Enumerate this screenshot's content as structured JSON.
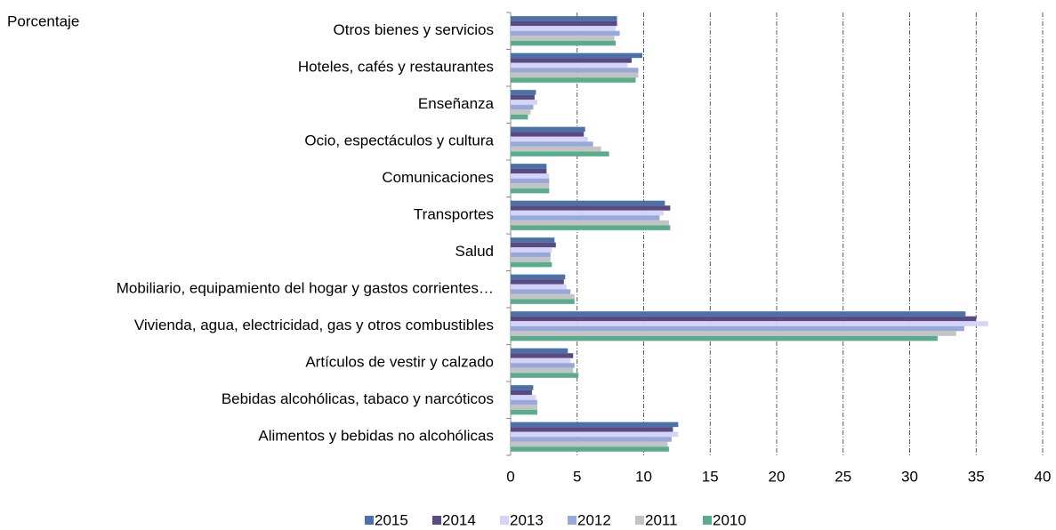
{
  "chart_data": {
    "type": "bar",
    "orientation": "horizontal",
    "ylabel": "Porcentaje",
    "categories": [
      "Otros bienes y servicios",
      "Hoteles, cafés y restaurantes",
      "Enseñanza",
      "Ocio, espectáculos y cultura",
      "Comunicaciones",
      "Transportes",
      "Salud",
      "Mobiliario, equipamiento del hogar y gastos corrientes…",
      "Vivienda, agua, electricidad, gas y otros combustibles",
      "Artículos de vestir y calzado",
      "Bebidas alcohólicas, tabaco y narcóticos",
      "Alimentos y bebidas no alcohólicas"
    ],
    "series": [
      {
        "name": "2015",
        "color": "#4a72a8",
        "values": [
          8.0,
          9.9,
          1.9,
          5.6,
          2.7,
          11.6,
          3.3,
          4.1,
          34.2,
          4.3,
          1.7,
          12.6
        ]
      },
      {
        "name": "2014",
        "color": "#5a4a82",
        "values": [
          8.0,
          9.1,
          1.8,
          5.5,
          2.7,
          12.0,
          3.4,
          4.0,
          35.0,
          4.7,
          1.6,
          12.2
        ]
      },
      {
        "name": "2013",
        "color": "#d4d4f7",
        "values": [
          7.9,
          8.8,
          2.0,
          5.8,
          2.9,
          11.5,
          3.1,
          4.2,
          35.9,
          4.5,
          1.9,
          12.6
        ]
      },
      {
        "name": "2012",
        "color": "#98a9d9",
        "values": [
          8.2,
          9.6,
          1.7,
          6.2,
          2.9,
          11.2,
          3.0,
          4.5,
          34.1,
          4.8,
          2.0,
          12.1
        ]
      },
      {
        "name": "2011",
        "color": "#c3c3c3",
        "values": [
          7.8,
          9.6,
          1.5,
          6.8,
          2.9,
          11.9,
          3.0,
          4.8,
          33.5,
          4.7,
          2.0,
          11.8
        ]
      },
      {
        "name": "2010",
        "color": "#5aad8c",
        "values": [
          7.9,
          9.4,
          1.3,
          7.4,
          2.9,
          12.0,
          3.1,
          4.8,
          32.1,
          5.1,
          2.0,
          11.9
        ]
      }
    ],
    "xlim": [
      0,
      40
    ],
    "xticks": [
      0,
      5,
      10,
      15,
      20,
      25,
      30,
      35,
      40
    ],
    "grid": true,
    "legend": "bottom"
  }
}
